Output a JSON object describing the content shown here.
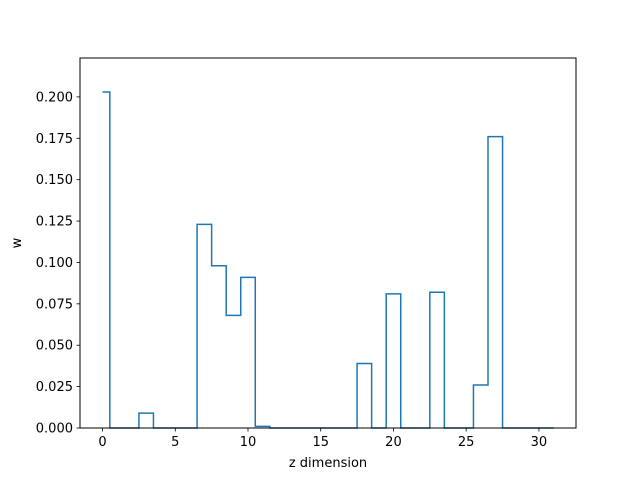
{
  "chart_data": {
    "type": "line",
    "drawstyle": "steps-mid",
    "title": "",
    "xlabel": "z dimension",
    "ylabel": "w",
    "xlim": [
      -1.55,
      32.55
    ],
    "ylim": [
      0,
      0.2235
    ],
    "xticks": [
      0,
      5,
      10,
      15,
      20,
      25,
      30
    ],
    "xtick_labels": [
      "0",
      "5",
      "10",
      "15",
      "20",
      "25",
      "30"
    ],
    "yticks": [
      0,
      0.025,
      0.05,
      0.075,
      0.1,
      0.125,
      0.15,
      0.175,
      0.2
    ],
    "ytick_labels": [
      "0.000",
      "0.025",
      "0.050",
      "0.075",
      "0.100",
      "0.125",
      "0.150",
      "0.175",
      "0.200"
    ],
    "grid": false,
    "legend": "none",
    "series": [
      {
        "color": "#1f77b4",
        "x": [
          0,
          1,
          2,
          3,
          4,
          5,
          6,
          7,
          8,
          9,
          10,
          11,
          12,
          13,
          14,
          15,
          16,
          17,
          18,
          19,
          20,
          21,
          22,
          23,
          24,
          25,
          26,
          27,
          28,
          29,
          30,
          31
        ],
        "values": [
          0.203,
          0.0,
          0.0,
          0.009,
          0.0,
          0.0,
          0.0,
          0.123,
          0.098,
          0.068,
          0.091,
          0.001,
          0.0,
          0.0,
          0.0,
          0.0,
          0.0,
          0.0,
          0.039,
          0.0,
          0.081,
          0.0,
          0.0,
          0.082,
          0.0,
          0.0,
          0.026,
          0.176,
          0.0,
          0.0,
          0.0,
          0.0
        ]
      }
    ]
  }
}
